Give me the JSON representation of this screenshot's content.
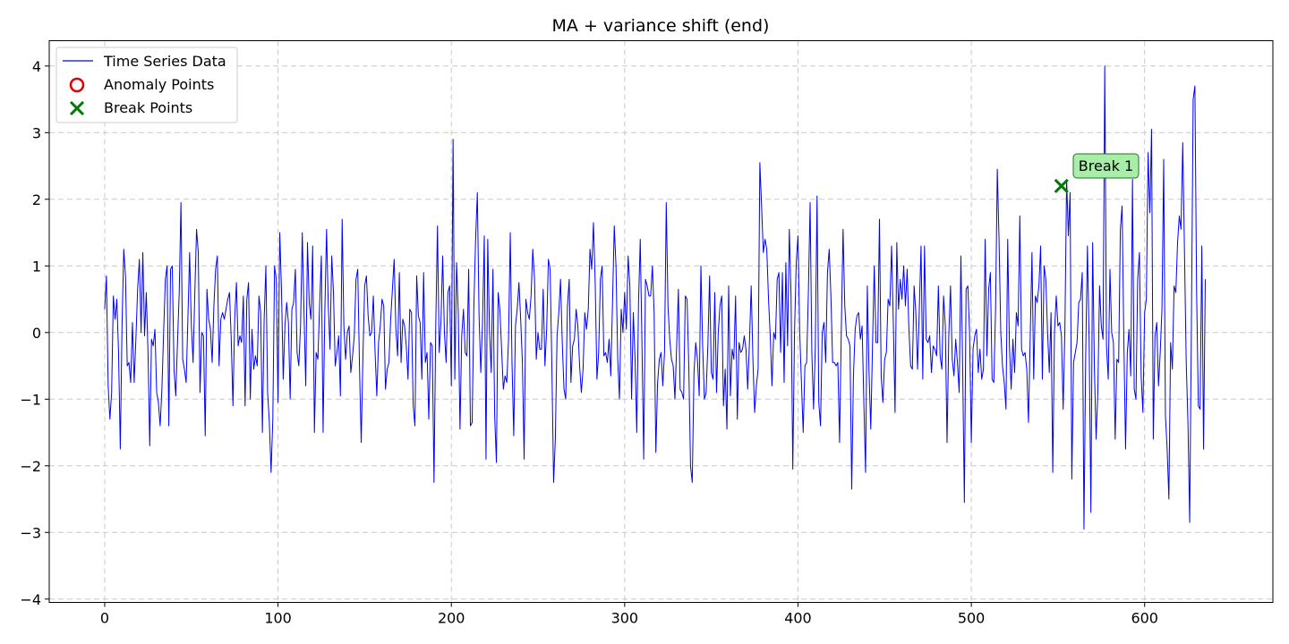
{
  "chart_data": {
    "type": "line",
    "title": "MA + variance shift (end)",
    "xlabel": "",
    "ylabel": "",
    "xlim": [
      -32,
      674
    ],
    "ylim": [
      -4.05,
      4.38
    ],
    "xticks": [
      0,
      100,
      200,
      300,
      400,
      500,
      600
    ],
    "yticks": [
      -4,
      -3,
      -2,
      -1,
      0,
      1,
      2,
      3,
      4
    ],
    "grid": true,
    "legend_position": "upper-left",
    "legend": [
      "Time Series Data",
      "Anomaly Points",
      "Break Points"
    ],
    "colors": {
      "series": "#0000ff",
      "anomaly": "#e00000",
      "break": "#007a00",
      "annotation_fill": "#a8eea8"
    },
    "series": [
      {
        "name": "Time Series Data",
        "x_start": 0,
        "x_step": 1,
        "values": [
          0.35,
          0.85,
          -0.8,
          -1.3,
          -0.9,
          0.55,
          0.2,
          0.5,
          -0.3,
          -1.75,
          0.1,
          1.25,
          0.85,
          -0.5,
          -0.45,
          -0.75,
          0.15,
          -0.75,
          -0.1,
          0.65,
          1.1,
          0.0,
          1.2,
          -0.05,
          0.6,
          -0.3,
          -1.7,
          -0.1,
          -0.2,
          0.05,
          -0.9,
          -1.05,
          -1.4,
          -0.85,
          0.0,
          0.8,
          1.0,
          -1.4,
          0.95,
          1.0,
          -0.55,
          -0.95,
          -0.15,
          0.6,
          1.95,
          -0.4,
          -0.55,
          -0.75,
          0.2,
          1.2,
          0.1,
          -0.45,
          0.6,
          1.55,
          1.2,
          -0.9,
          0.0,
          -0.05,
          -1.55,
          0.65,
          0.2,
          0.05,
          -0.45,
          0.4,
          0.95,
          1.15,
          -0.5,
          0.2,
          0.3,
          0.2,
          0.35,
          0.5,
          0.6,
          -0.1,
          -1.1,
          0.2,
          0.75,
          -0.2,
          -0.05,
          -0.15,
          0.55,
          -1.1,
          0.5,
          0.75,
          -1.0,
          0.05,
          -0.55,
          -0.35,
          -0.5,
          0.55,
          0.3,
          -1.5,
          0.2,
          1.0,
          -0.9,
          -1.35,
          -2.1,
          -1.3,
          1.0,
          0.8,
          -1.05,
          1.5,
          0.65,
          -0.7,
          0.1,
          0.45,
          0.15,
          -1.0,
          0.35,
          0.45,
          0.95,
          -0.3,
          -0.5,
          0.1,
          1.5,
          0.3,
          -0.8,
          1.35,
          0.45,
          0.2,
          1.3,
          -1.5,
          -0.3,
          -0.4,
          0.4,
          1.15,
          -1.5,
          0.3,
          1.55,
          0.4,
          -0.25,
          1.15,
          0.6,
          -0.5,
          -0.3,
          -0.05,
          -0.95,
          1.7,
          0.1,
          -0.4,
          0.0,
          0.1,
          -0.6,
          -0.35,
          -0.05,
          0.8,
          0.95,
          -0.5,
          -1.65,
          -0.35,
          0.7,
          0.85,
          0.25,
          -0.05,
          0.0,
          0.55,
          -0.3,
          -0.95,
          -0.15,
          0.1,
          0.5,
          0.4,
          -0.85,
          -0.55,
          -0.45,
          0.2,
          0.65,
          1.1,
          0.05,
          -0.35,
          0.9,
          -0.45,
          0.2,
          0.1,
          -0.2,
          -0.7,
          0.35,
          0.3,
          -1.1,
          -1.4,
          0.85,
          0.25,
          0.15,
          -0.7,
          0.9,
          -0.45,
          -0.3,
          -1.3,
          -0.15,
          -0.2,
          -2.25,
          0.1,
          1.6,
          -0.3,
          0.15,
          1.15,
          0.0,
          -0.45,
          0.6,
          0.7,
          -0.8,
          2.9,
          -0.7,
          1.05,
          0.3,
          -1.45,
          -0.05,
          0.35,
          -0.3,
          -0.35,
          0.95,
          -1.4,
          -1.35,
          0.4,
          1.4,
          2.1,
          0.25,
          -0.6,
          0.15,
          1.45,
          -1.9,
          1.4,
          0.05,
          -0.6,
          0.95,
          -1.25,
          -1.95,
          0.6,
          0.35,
          -0.25,
          -0.85,
          -0.65,
          -0.75,
          -0.1,
          1.5,
          -0.45,
          -1.55,
          0.1,
          0.35,
          0.75,
          0.2,
          -0.45,
          -1.9,
          0.5,
          0.3,
          0.2,
          0.55,
          1.25,
          0.8,
          -0.4,
          0.0,
          -0.25,
          -0.25,
          0.65,
          -0.5,
          0.05,
          1.1,
          0.95,
          -0.5,
          -2.25,
          -1.6,
          -0.05,
          0.3,
          0.8,
          -0.15,
          -0.85,
          -1.0,
          0.4,
          0.8,
          -0.75,
          -0.2,
          -0.1,
          0.35,
          0.1,
          -0.5,
          -0.9,
          -0.55,
          0.3,
          0.05,
          0.35,
          1.25,
          0.95,
          1.65,
          0.75,
          -0.7,
          -0.3,
          0.8,
          1.0,
          -0.35,
          -0.3,
          -0.45,
          -0.1,
          -0.65,
          0.45,
          1.6,
          1.0,
          -0.4,
          -1.0,
          0.35,
          0.0,
          0.6,
          0.05,
          1.15,
          0.7,
          -1.0,
          0.3,
          -0.4,
          -1.5,
          0.45,
          1.4,
          -0.2,
          -1.9,
          0.8,
          0.7,
          0.55,
          0.55,
          1.0,
          0.3,
          -1.8,
          -0.75,
          -0.4,
          -0.3,
          -0.8,
          -0.3,
          1.95,
          0.4,
          -0.1,
          -0.4,
          -0.5,
          -1.0,
          -0.2,
          0.65,
          -0.85,
          -0.9,
          -1.0,
          0.55,
          0.5,
          -0.5,
          -2.0,
          -2.25,
          -0.6,
          -0.15,
          -0.4,
          -0.95,
          1.0,
          -0.2,
          -1.0,
          -0.9,
          -0.2,
          0.85,
          -0.6,
          -0.7,
          0.6,
          -0.9,
          0.0,
          0.4,
          0.55,
          -1.1,
          -0.55,
          -1.45,
          0.7,
          -0.95,
          -0.25,
          -0.4,
          0.55,
          -1.3,
          -0.15,
          -0.3,
          -0.25,
          -0.05,
          -0.25,
          -0.85,
          -0.15,
          0.7,
          -0.4,
          -1.2,
          -0.8,
          -0.55,
          2.55,
          1.9,
          1.2,
          1.4,
          1.25,
          0.5,
          -0.05,
          -0.8,
          0.0,
          -0.1,
          0.8,
          0.9,
          -0.3,
          0.9,
          -0.75,
          1.05,
          -0.2,
          1.55,
          0.55,
          -2.05,
          0.0,
          1.05,
          1.45,
          0.0,
          -0.75,
          -1.5,
          -0.5,
          -0.45,
          0.6,
          1.95,
          -0.3,
          -1.15,
          -0.2,
          2.05,
          -1.05,
          -1.4,
          0.0,
          0.15,
          -0.45,
          0.9,
          1.25,
          0.55,
          -0.45,
          -0.45,
          -0.5,
          -0.45,
          -1.65,
          0.05,
          1.55,
          0.4,
          -0.05,
          -0.1,
          -0.2,
          -2.35,
          -0.65,
          0.05,
          0.25,
          0.3,
          -0.1,
          0.1,
          -1.05,
          -2.1,
          0.7,
          -0.6,
          -1.45,
          -0.2,
          1.0,
          -0.15,
          -0.15,
          1.7,
          -0.65,
          -1.05,
          -0.4,
          -0.3,
          0.5,
          0.4,
          1.3,
          0.15,
          -1.2,
          1.35,
          0.35,
          0.8,
          0.5,
          1.0,
          0.4,
          0.95,
          0.05,
          -0.5,
          -0.55,
          0.7,
          0.3,
          -0.55,
          0.35,
          1.3,
          -0.7,
          1.3,
          -0.1,
          -0.15,
          -0.05,
          -0.6,
          -0.2,
          -0.25,
          -0.35,
          0.7,
          -0.35,
          -0.55,
          0.55,
          0.1,
          -1.65,
          -0.05,
          0.7,
          -0.4,
          -0.65,
          -0.1,
          -0.45,
          -0.9,
          1.15,
          -0.5,
          -2.55,
          0.65,
          0.7,
          0.0,
          -1.65,
          -0.25,
          -0.05,
          0.05,
          -0.6,
          -0.25,
          -0.7,
          -0.55,
          1.4,
          -0.35,
          0.65,
          0.9,
          -0.7,
          -0.75,
          0.35,
          2.45,
          1.4,
          0.0,
          -0.5,
          -0.75,
          -1.15,
          1.4,
          -0.2,
          -0.85,
          -0.1,
          -0.6,
          0.3,
          0.1,
          1.75,
          -0.25,
          -0.35,
          -0.3,
          -0.55,
          -1.35,
          -0.05,
          1.2,
          -0.7,
          0.55,
          0.45,
          0.7,
          1.3,
          -0.7,
          1.0,
          0.8,
          0.0,
          -0.6,
          0.3,
          -2.1,
          0.0,
          0.55,
          0.1,
          0.15,
          -0.05,
          -1.15,
          0.05,
          2.3,
          1.45,
          2.1,
          -2.2,
          -0.45,
          -0.3,
          -0.15,
          0.45,
          0.5,
          0.9,
          -2.95,
          -0.35,
          1.3,
          -0.15,
          -2.7,
          1.35,
          -0.5,
          -1.6,
          -0.9,
          0.7,
          0.1,
          -0.1,
          4.0,
          -0.2,
          -0.7,
          0.95,
          0.0,
          -0.15,
          -1.6,
          -0.4,
          -0.45,
          1.55,
          1.9,
          -0.1,
          -1.75,
          -0.3,
          0.05,
          -0.65,
          2.3,
          -0.85,
          -1.0,
          0.8,
          1.2,
          -0.65,
          -1.2,
          0.3,
          0.5,
          2.7,
          1.8,
          3.05,
          -1.6,
          -0.05,
          0.15,
          -0.8,
          -0.3,
          0.35,
          2.6,
          -1.25,
          -1.75,
          -2.5,
          -0.15,
          -0.55,
          0.7,
          0.6,
          1.35,
          1.75,
          1.55,
          2.85,
          1.2,
          -0.45,
          -1.35,
          -2.85,
          0.15,
          3.5,
          3.7,
          0.6,
          -1.1,
          -1.15,
          1.3,
          -1.75,
          0.8
        ]
      }
    ],
    "anomaly_points": [],
    "break_points": [
      {
        "x": 552,
        "y": 2.2
      }
    ],
    "annotations": [
      {
        "text": "Break 1",
        "x": 552,
        "y": 2.2
      }
    ]
  }
}
